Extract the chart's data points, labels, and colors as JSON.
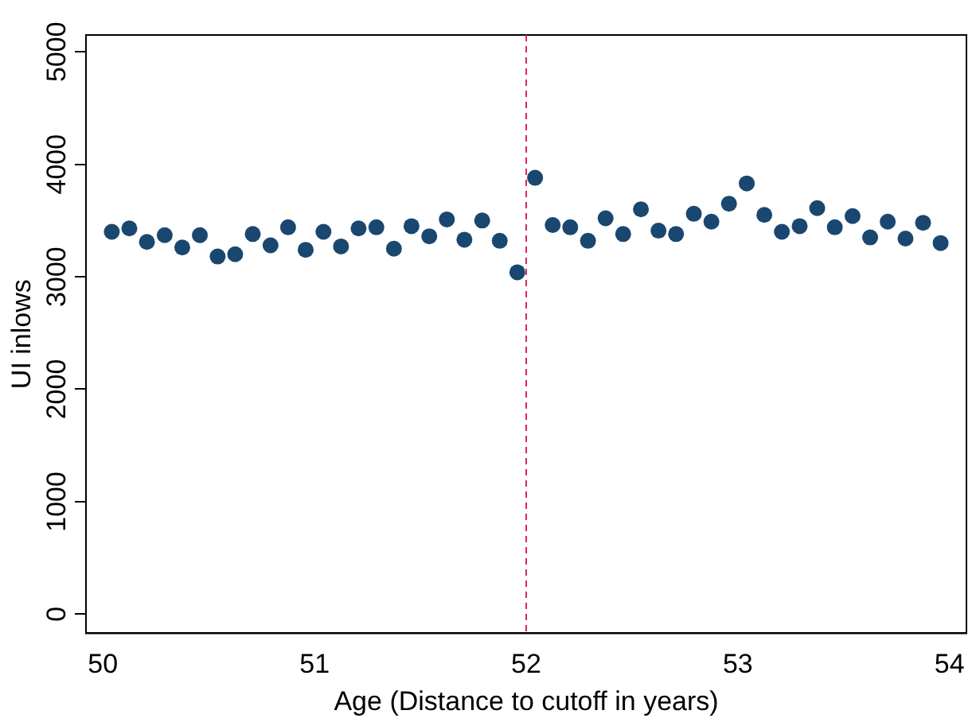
{
  "chart_data": {
    "type": "scatter",
    "xlabel": "Age (Distance to cutoff in years)",
    "ylabel": "UI inlows",
    "x": [
      50.042,
      50.125,
      50.208,
      50.292,
      50.375,
      50.458,
      50.542,
      50.625,
      50.708,
      50.792,
      50.875,
      50.958,
      51.042,
      51.125,
      51.208,
      51.292,
      51.375,
      51.458,
      51.542,
      51.625,
      51.708,
      51.792,
      51.875,
      51.958,
      52.042,
      52.125,
      52.208,
      52.292,
      52.375,
      52.458,
      52.542,
      52.625,
      52.708,
      52.792,
      52.875,
      52.958,
      53.042,
      53.125,
      53.208,
      53.292,
      53.375,
      53.458,
      53.542,
      53.625,
      53.708,
      53.792,
      53.875,
      53.958
    ],
    "series": [
      {
        "color": "#1a476f",
        "values": [
          3400,
          3430,
          3310,
          3370,
          3260,
          3370,
          3180,
          3200,
          3380,
          3280,
          3440,
          3240,
          3400,
          3270,
          3430,
          3440,
          3250,
          3450,
          3360,
          3510,
          3330,
          3500,
          3320,
          3040,
          3880,
          3460,
          3440,
          3320,
          3520,
          3380,
          3600,
          3410,
          3380,
          3560,
          3490,
          3650,
          3830,
          3550,
          3400,
          3450,
          3610,
          3440,
          3540,
          3350,
          3490,
          3340,
          3480,
          3300
        ]
      }
    ],
    "xlim": [
      49.92,
      54.08
    ],
    "ylim": [
      -170,
      5150
    ],
    "xticks": [
      50,
      51,
      52,
      53,
      54
    ],
    "yticks": [
      0,
      1000,
      2000,
      3000,
      4000,
      5000
    ],
    "ref_lines": [
      {
        "axis": "x",
        "value": 52,
        "color": "#e0245e",
        "line_style": "dashed"
      }
    ],
    "grid": false,
    "legend": false,
    "marker": "circle"
  }
}
